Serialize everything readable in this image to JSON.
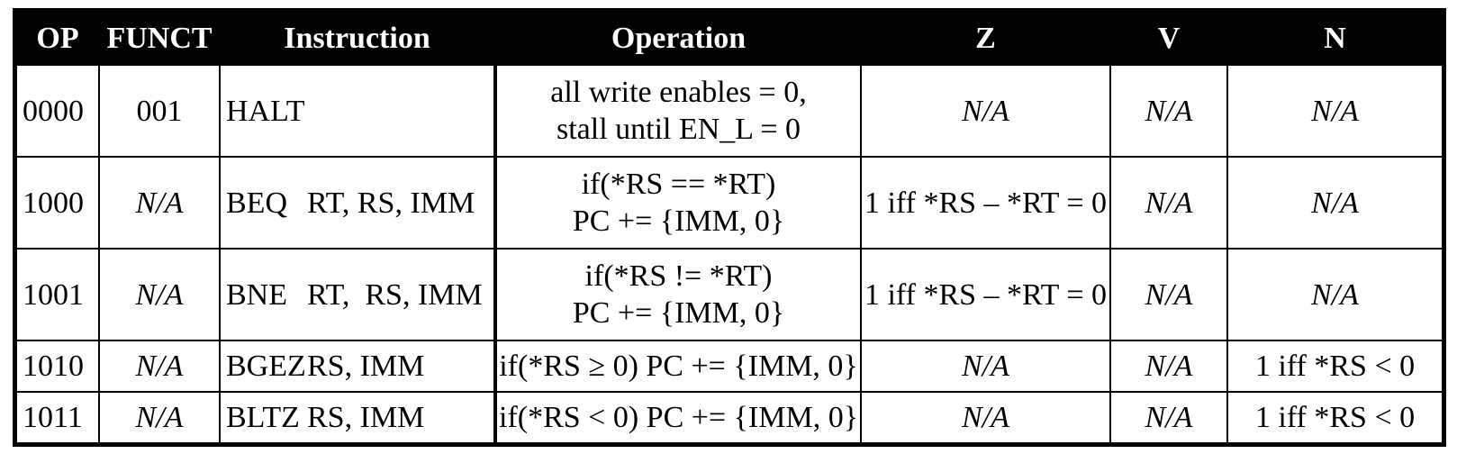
{
  "headers": {
    "op": "OP",
    "funct": "FUNCT",
    "instruction": "Instruction",
    "operation": "Operation",
    "z": "Z",
    "v": "V",
    "n": "N"
  },
  "rows": [
    {
      "op": "0000",
      "funct": "001",
      "funct_italic": false,
      "mnemonic": "HALT",
      "operands": "",
      "operation_line1": "all write enables = 0,",
      "operation_line2": "stall until EN_L = 0",
      "z": "N/A",
      "v": "N/A",
      "n": "N/A"
    },
    {
      "op": "1000",
      "funct": "N/A",
      "funct_italic": true,
      "mnemonic": "BEQ",
      "operands": "RT, RS, IMM",
      "operation_line1": "if(*RS == *RT)",
      "operation_line2": "PC += {IMM, 0}",
      "z": "1 iff *RS – *RT = 0",
      "v": "N/A",
      "n": "N/A"
    },
    {
      "op": "1001",
      "funct": "N/A",
      "funct_italic": true,
      "mnemonic": "BNE",
      "operands": "RT,  RS, IMM",
      "operation_line1": "if(*RS != *RT)",
      "operation_line2": "PC += {IMM, 0}",
      "z": "1 iff *RS – *RT = 0",
      "v": "N/A",
      "n": "N/A"
    },
    {
      "op": "1010",
      "funct": "N/A",
      "funct_italic": true,
      "mnemonic": "BGEZ",
      "operands": "RS, IMM",
      "operation_line1": "if(*RS ≥ 0) PC += {IMM, 0}",
      "operation_line2": "",
      "z": "N/A",
      "v": "N/A",
      "n": "1 iff *RS < 0"
    },
    {
      "op": "1011",
      "funct": "N/A",
      "funct_italic": true,
      "mnemonic": "BLTZ",
      "operands": "RS, IMM",
      "operation_line1": "if(*RS < 0) PC += {IMM, 0}",
      "operation_line2": "",
      "z": "N/A",
      "v": "N/A",
      "n": "1 iff *RS < 0"
    }
  ]
}
